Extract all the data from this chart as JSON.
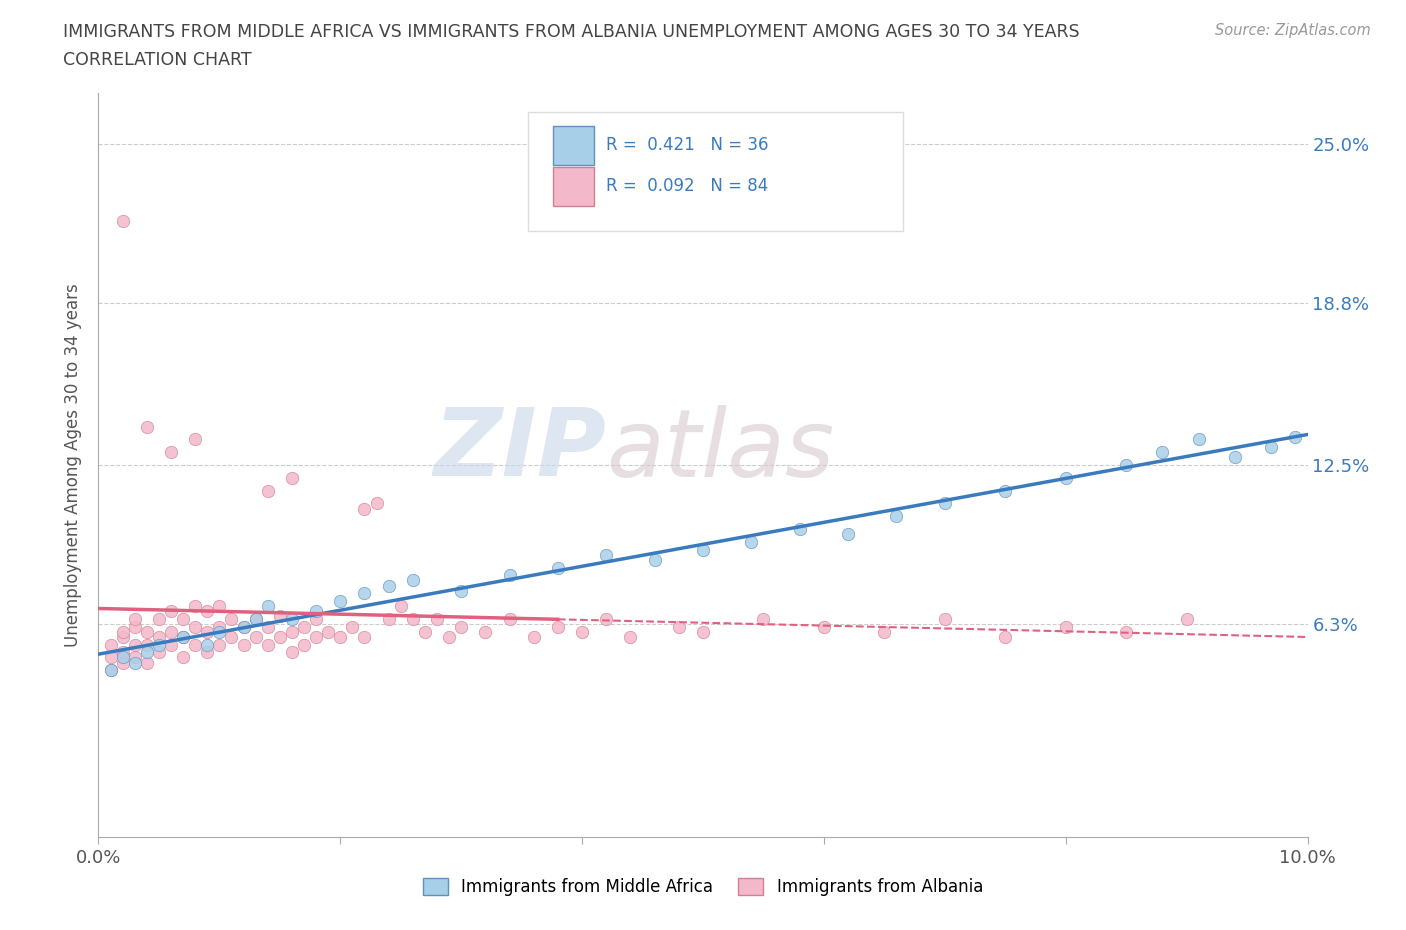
{
  "title_line1": "IMMIGRANTS FROM MIDDLE AFRICA VS IMMIGRANTS FROM ALBANIA UNEMPLOYMENT AMONG AGES 30 TO 34 YEARS",
  "title_line2": "CORRELATION CHART",
  "source_text": "Source: ZipAtlas.com",
  "ylabel": "Unemployment Among Ages 30 to 34 years",
  "xlim": [
    0.0,
    0.1
  ],
  "ylim": [
    -0.02,
    0.27
  ],
  "ytick_vals": [
    0.063,
    0.125,
    0.188,
    0.25
  ],
  "ytick_labels": [
    "6.3%",
    "12.5%",
    "18.8%",
    "25.0%"
  ],
  "color_blue": "#a8cfe8",
  "color_pink": "#f4b8cb",
  "color_blue_line": "#3a7bbf",
  "color_pink_line": "#e06080",
  "legend_label_blue": "Immigrants from Middle Africa",
  "legend_label_pink": "Immigrants from Albania",
  "R_blue": 0.421,
  "N_blue": 36,
  "R_pink": 0.092,
  "N_pink": 84,
  "watermark_zip": "ZIP",
  "watermark_atlas": "atlas",
  "blue_scatter_x": [
    0.001,
    0.002,
    0.003,
    0.004,
    0.005,
    0.007,
    0.009,
    0.01,
    0.012,
    0.013,
    0.014,
    0.016,
    0.018,
    0.02,
    0.022,
    0.024,
    0.026,
    0.03,
    0.034,
    0.038,
    0.042,
    0.046,
    0.05,
    0.054,
    0.058,
    0.062,
    0.066,
    0.07,
    0.075,
    0.08,
    0.085,
    0.088,
    0.091,
    0.094,
    0.097,
    0.099
  ],
  "blue_scatter_y": [
    0.045,
    0.05,
    0.048,
    0.052,
    0.055,
    0.058,
    0.055,
    0.06,
    0.062,
    0.065,
    0.07,
    0.065,
    0.068,
    0.072,
    0.075,
    0.078,
    0.08,
    0.076,
    0.082,
    0.085,
    0.09,
    0.088,
    0.092,
    0.095,
    0.1,
    0.098,
    0.105,
    0.11,
    0.115,
    0.12,
    0.125,
    0.13,
    0.135,
    0.128,
    0.132,
    0.136
  ],
  "pink_scatter_x": [
    0.001,
    0.001,
    0.001,
    0.002,
    0.002,
    0.002,
    0.002,
    0.003,
    0.003,
    0.003,
    0.003,
    0.004,
    0.004,
    0.004,
    0.005,
    0.005,
    0.005,
    0.006,
    0.006,
    0.006,
    0.007,
    0.007,
    0.007,
    0.008,
    0.008,
    0.008,
    0.009,
    0.009,
    0.009,
    0.01,
    0.01,
    0.01,
    0.011,
    0.011,
    0.012,
    0.012,
    0.013,
    0.013,
    0.014,
    0.014,
    0.015,
    0.015,
    0.016,
    0.016,
    0.017,
    0.017,
    0.018,
    0.018,
    0.019,
    0.02,
    0.021,
    0.022,
    0.023,
    0.024,
    0.025,
    0.026,
    0.027,
    0.028,
    0.029,
    0.03,
    0.032,
    0.034,
    0.036,
    0.038,
    0.04,
    0.042,
    0.044,
    0.048,
    0.05,
    0.055,
    0.06,
    0.065,
    0.07,
    0.075,
    0.08,
    0.085,
    0.09,
    0.022,
    0.014,
    0.016,
    0.002,
    0.004,
    0.006,
    0.008
  ],
  "pink_scatter_y": [
    0.045,
    0.05,
    0.055,
    0.048,
    0.052,
    0.058,
    0.06,
    0.05,
    0.055,
    0.062,
    0.065,
    0.048,
    0.055,
    0.06,
    0.052,
    0.058,
    0.065,
    0.055,
    0.06,
    0.068,
    0.05,
    0.058,
    0.065,
    0.055,
    0.062,
    0.07,
    0.052,
    0.06,
    0.068,
    0.055,
    0.062,
    0.07,
    0.058,
    0.065,
    0.055,
    0.062,
    0.058,
    0.065,
    0.055,
    0.062,
    0.058,
    0.066,
    0.052,
    0.06,
    0.055,
    0.062,
    0.058,
    0.065,
    0.06,
    0.058,
    0.062,
    0.058,
    0.11,
    0.065,
    0.07,
    0.065,
    0.06,
    0.065,
    0.058,
    0.062,
    0.06,
    0.065,
    0.058,
    0.062,
    0.06,
    0.065,
    0.058,
    0.062,
    0.06,
    0.065,
    0.062,
    0.06,
    0.065,
    0.058,
    0.062,
    0.06,
    0.065,
    0.108,
    0.115,
    0.12,
    0.22,
    0.14,
    0.13,
    0.135
  ]
}
